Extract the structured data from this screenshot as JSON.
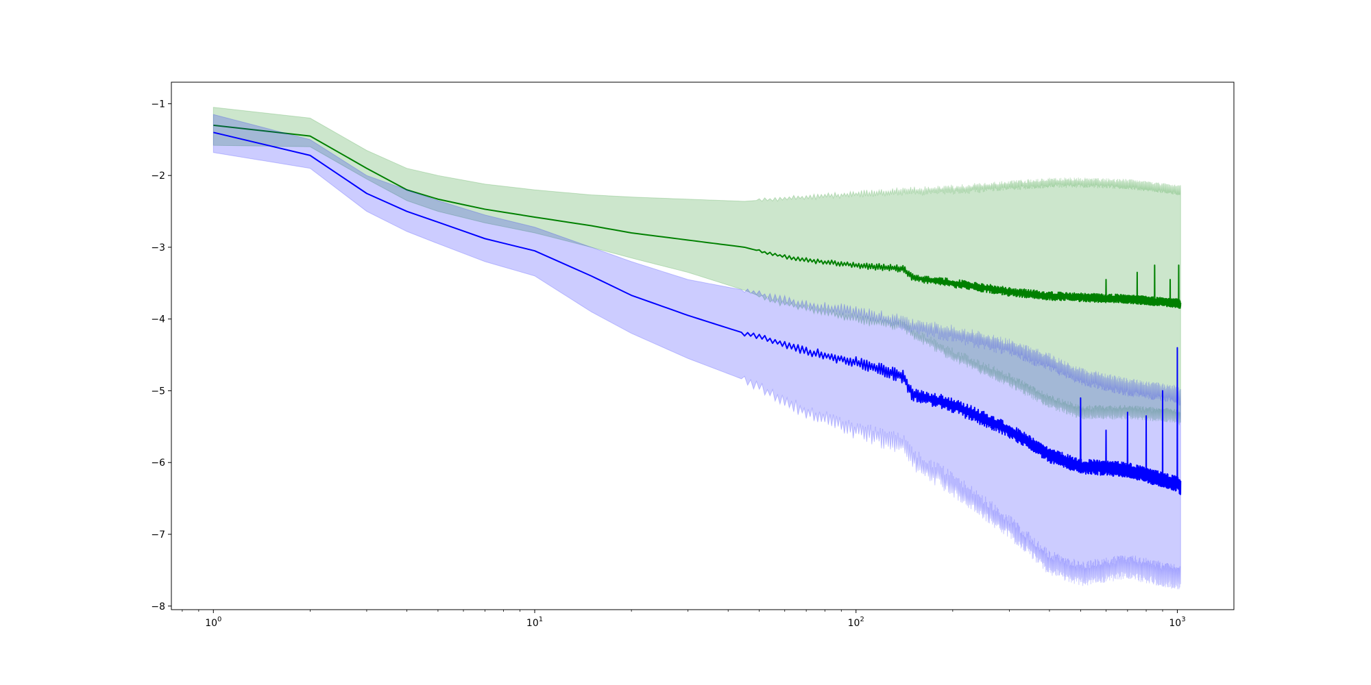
{
  "chart_data": {
    "type": "line",
    "title": "",
    "xlabel": "",
    "ylabel": "",
    "x_scale": "log",
    "xlim": [
      0.74,
      1500
    ],
    "ylim": [
      -8.05,
      -0.7
    ],
    "x_ticks": [
      {
        "value": 1,
        "base": "10",
        "exp": "0"
      },
      {
        "value": 10,
        "base": "10",
        "exp": "1"
      },
      {
        "value": 100,
        "base": "10",
        "exp": "2"
      },
      {
        "value": 1000,
        "base": "10",
        "exp": "3"
      }
    ],
    "y_ticks": [
      {
        "value": -1,
        "label": "−1"
      },
      {
        "value": -2,
        "label": "−2"
      },
      {
        "value": -3,
        "label": "−3"
      },
      {
        "value": -4,
        "label": "−4"
      },
      {
        "value": -5,
        "label": "−5"
      },
      {
        "value": -6,
        "label": "−6"
      },
      {
        "value": -7,
        "label": "−7"
      },
      {
        "value": -8,
        "label": "−8"
      }
    ],
    "grid": false,
    "legend": "none",
    "series": [
      {
        "color": "#008000",
        "band_color": "#008000",
        "band_opacity": 0.2,
        "x": [
          1,
          2,
          3,
          4,
          5,
          7,
          10,
          15,
          20,
          30,
          45,
          55,
          70,
          100,
          140,
          150,
          200,
          300,
          400,
          500,
          700,
          1000,
          1024
        ],
        "mean": [
          -1.3,
          -1.45,
          -1.9,
          -2.2,
          -2.33,
          -2.47,
          -2.58,
          -2.7,
          -2.8,
          -2.9,
          -3.0,
          -3.1,
          -3.18,
          -3.25,
          -3.3,
          -3.42,
          -3.5,
          -3.62,
          -3.68,
          -3.7,
          -3.72,
          -3.78,
          -3.8
        ],
        "upper": [
          -1.05,
          -1.2,
          -1.65,
          -1.9,
          -2.0,
          -2.12,
          -2.2,
          -2.27,
          -2.3,
          -2.33,
          -2.36,
          -2.33,
          -2.3,
          -2.26,
          -2.22,
          -2.22,
          -2.2,
          -2.14,
          -2.1,
          -2.1,
          -2.12,
          -2.2,
          -2.2
        ],
        "lower": [
          -1.58,
          -1.6,
          -2.05,
          -2.35,
          -2.5,
          -2.66,
          -2.8,
          -3.0,
          -3.15,
          -3.35,
          -3.6,
          -3.75,
          -3.85,
          -4.0,
          -4.1,
          -4.2,
          -4.5,
          -4.85,
          -5.15,
          -5.3,
          -5.3,
          -5.35,
          -5.4
        ],
        "noise_start": 50,
        "noise_amp": 0.04,
        "spikes": [
          [
            600,
            -3.45
          ],
          [
            750,
            -3.35
          ],
          [
            850,
            -3.25
          ],
          [
            950,
            -3.45
          ],
          [
            1010,
            -3.25
          ]
        ]
      },
      {
        "color": "#0000ff",
        "band_color": "#0000ff",
        "band_opacity": 0.2,
        "x": [
          1,
          2,
          3,
          4,
          5,
          7,
          10,
          15,
          20,
          30,
          45,
          55,
          70,
          100,
          140,
          150,
          200,
          300,
          400,
          500,
          700,
          1000,
          1024
        ],
        "mean": [
          -1.4,
          -1.72,
          -2.25,
          -2.5,
          -2.65,
          -2.88,
          -3.05,
          -3.4,
          -3.67,
          -3.95,
          -4.2,
          -4.3,
          -4.45,
          -4.6,
          -4.8,
          -5.05,
          -5.2,
          -5.55,
          -5.9,
          -6.05,
          -6.1,
          -6.3,
          -6.35
        ],
        "upper": [
          -1.15,
          -1.5,
          -2.0,
          -2.2,
          -2.35,
          -2.55,
          -2.72,
          -3.0,
          -3.2,
          -3.45,
          -3.6,
          -3.7,
          -3.8,
          -3.9,
          -4.05,
          -4.1,
          -4.2,
          -4.4,
          -4.6,
          -4.8,
          -4.95,
          -5.05,
          -5.1
        ],
        "lower": [
          -1.68,
          -1.9,
          -2.5,
          -2.78,
          -2.95,
          -3.2,
          -3.4,
          -3.9,
          -4.2,
          -4.55,
          -4.85,
          -5.05,
          -5.3,
          -5.55,
          -5.75,
          -5.95,
          -6.3,
          -6.9,
          -7.4,
          -7.55,
          -7.45,
          -7.6,
          -7.6
        ],
        "noise_start": 45,
        "noise_amp": 0.07,
        "spikes": [
          [
            500,
            -5.1
          ],
          [
            600,
            -5.55
          ],
          [
            700,
            -5.3
          ],
          [
            800,
            -5.35
          ],
          [
            900,
            -5.0
          ],
          [
            1000,
            -4.4
          ]
        ]
      }
    ]
  }
}
